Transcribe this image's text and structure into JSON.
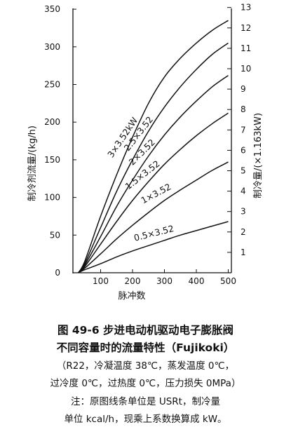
{
  "chart_data": {
    "type": "line",
    "xlabel": "脉冲数",
    "ylabel_left": "制冷剂流量/(kg/h)",
    "ylabel_right": "制冷量/(×1.163kW)",
    "x_ticks": [
      100,
      200,
      300,
      400,
      500
    ],
    "xlim": [
      0,
      500
    ],
    "y_left_ticks": [
      0,
      50,
      100,
      150,
      200,
      250,
      300,
      350
    ],
    "ylim_left": [
      0,
      350
    ],
    "y_right_ticks": [
      1,
      2,
      3,
      4,
      5,
      6,
      7,
      8,
      9,
      10,
      11,
      12,
      13
    ],
    "grid": false,
    "curves": [
      {
        "label": "3×3.52kW",
        "points": [
          [
            30,
            0
          ],
          [
            50,
            15
          ],
          [
            100,
            75
          ],
          [
            150,
            130
          ],
          [
            200,
            180
          ],
          [
            250,
            225
          ],
          [
            300,
            260
          ],
          [
            350,
            285
          ],
          [
            400,
            305
          ],
          [
            450,
            322
          ],
          [
            500,
            335
          ]
        ]
      },
      {
        "label": "2.5×3.52",
        "points": [
          [
            30,
            0
          ],
          [
            50,
            12
          ],
          [
            100,
            60
          ],
          [
            150,
            108
          ],
          [
            200,
            150
          ],
          [
            250,
            188
          ],
          [
            300,
            220
          ],
          [
            350,
            247
          ],
          [
            400,
            270
          ],
          [
            450,
            290
          ],
          [
            500,
            305
          ]
        ]
      },
      {
        "label": "2×3.52",
        "points": [
          [
            30,
            0
          ],
          [
            50,
            10
          ],
          [
            100,
            48
          ],
          [
            150,
            88
          ],
          [
            200,
            123
          ],
          [
            250,
            155
          ],
          [
            300,
            183
          ],
          [
            350,
            207
          ],
          [
            400,
            228
          ],
          [
            450,
            247
          ],
          [
            500,
            262
          ]
        ]
      },
      {
        "label": "1.5×3.52",
        "points": [
          [
            30,
            0
          ],
          [
            50,
            8
          ],
          [
            100,
            38
          ],
          [
            150,
            68
          ],
          [
            200,
            96
          ],
          [
            250,
            121
          ],
          [
            300,
            144
          ],
          [
            350,
            164
          ],
          [
            400,
            182
          ],
          [
            450,
            198
          ],
          [
            500,
            212
          ]
        ]
      },
      {
        "label": "1×3.52",
        "points": [
          [
            30,
            0
          ],
          [
            50,
            6
          ],
          [
            100,
            25
          ],
          [
            150,
            45
          ],
          [
            200,
            63
          ],
          [
            250,
            80
          ],
          [
            300,
            96
          ],
          [
            350,
            110
          ],
          [
            400,
            123
          ],
          [
            450,
            136
          ],
          [
            500,
            147
          ]
        ]
      },
      {
        "label": "0.5×3.52",
        "points": [
          [
            30,
            0
          ],
          [
            50,
            4
          ],
          [
            100,
            12
          ],
          [
            150,
            21
          ],
          [
            200,
            29
          ],
          [
            250,
            36
          ],
          [
            300,
            43
          ],
          [
            350,
            50
          ],
          [
            400,
            56
          ],
          [
            450,
            62
          ],
          [
            500,
            68
          ]
        ]
      }
    ]
  },
  "caption": {
    "line1": "图 49-6   步进电动机驱动电子膨胀阀",
    "line2": "不同容量时的流量特性（Fujikoki）",
    "line3": "（R22，冷凝温度 38℃，蒸发温度 0℃，",
    "line4": "过冷度 0℃，过热度 0℃，压力损失 0MPa）",
    "line5": "注：原图线条单位是 USRt，制冷量",
    "line6": "单位 kcal/h，现乘上系数换算成 kW。"
  }
}
